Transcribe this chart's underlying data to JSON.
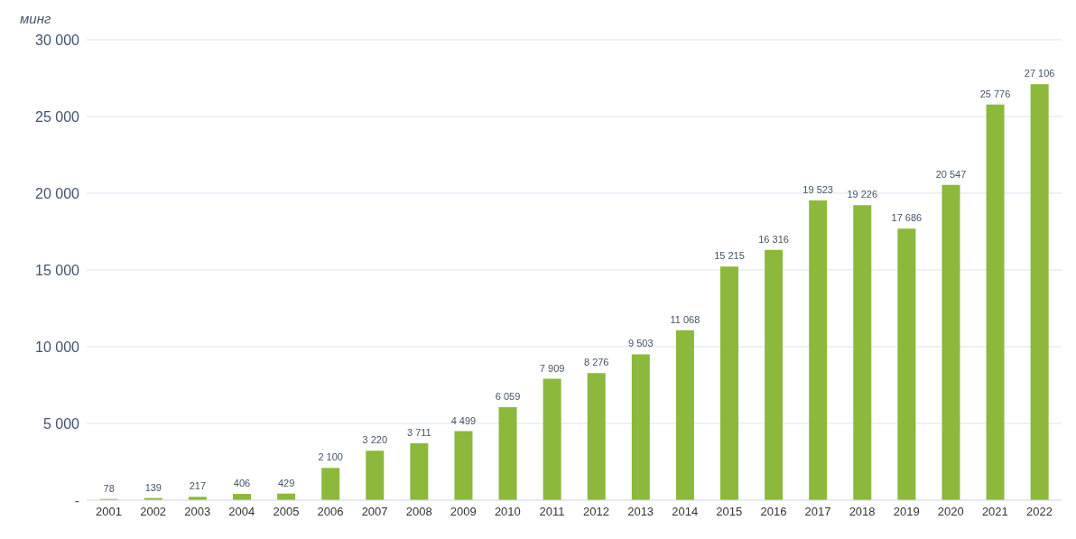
{
  "chart_data": {
    "type": "bar",
    "ylabel": "минг",
    "categories": [
      "2001",
      "2002",
      "2003",
      "2004",
      "2005",
      "2006",
      "2007",
      "2008",
      "2009",
      "2010",
      "2011",
      "2012",
      "2013",
      "2014",
      "2015",
      "2016",
      "2017",
      "2018",
      "2019",
      "2020",
      "2021",
      "2022"
    ],
    "values": [
      78,
      139,
      217,
      406,
      429,
      2100,
      3220,
      3711,
      4499,
      6059,
      7909,
      8276,
      9503,
      11068,
      15215,
      16316,
      19523,
      19226,
      17686,
      20547,
      25776,
      27106
    ],
    "value_labels": [
      "78",
      "139",
      "217",
      "406",
      "429",
      "2 100",
      "3 220",
      "3 711",
      "4 499",
      "6 059",
      "7 909",
      "8 276",
      "9 503",
      "11 068",
      "15 215",
      "16 316",
      "19 523",
      "19 226",
      "17 686",
      "20 547",
      "25 776",
      "27 106"
    ],
    "color": "#8cb83c",
    "ylim": [
      0,
      30000
    ],
    "yticks": [
      {
        "value": 0,
        "label": "-"
      },
      {
        "value": 5000,
        "label": "5 000"
      },
      {
        "value": 10000,
        "label": "10 000"
      },
      {
        "value": 15000,
        "label": "15 000"
      },
      {
        "value": 20000,
        "label": "20 000"
      },
      {
        "value": 25000,
        "label": "25 000"
      },
      {
        "value": 30000,
        "label": "30 000"
      }
    ],
    "grid": "y"
  }
}
